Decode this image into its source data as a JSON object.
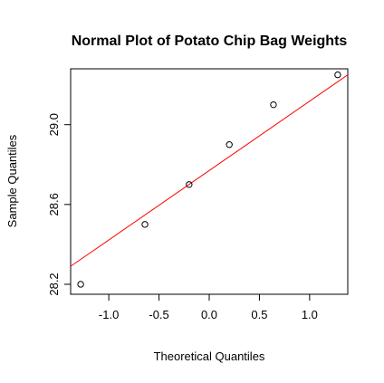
{
  "chart_data": {
    "type": "scatter",
    "title": "Normal Plot of Potato Chip Bag Weights",
    "xlabel": "Theoretical Quantiles",
    "ylabel": "Sample Quantiles",
    "xlim": [
      -1.38,
      1.38
    ],
    "ylim": [
      28.15,
      29.28
    ],
    "x_ticks": [
      -1.0,
      -0.5,
      0.0,
      0.5,
      1.0
    ],
    "x_tick_labels": [
      "-1.0",
      "-0.5",
      "0.0",
      "0.5",
      "1.0"
    ],
    "y_ticks": [
      28.2,
      28.6,
      29.0
    ],
    "y_tick_labels": [
      "28.2",
      "28.6",
      "29.0"
    ],
    "grid": false,
    "points": [
      {
        "x": -1.28,
        "y": 28.2
      },
      {
        "x": -0.64,
        "y": 28.5
      },
      {
        "x": -0.2,
        "y": 28.7
      },
      {
        "x": 0.2,
        "y": 28.9
      },
      {
        "x": 0.64,
        "y": 29.1
      },
      {
        "x": 1.28,
        "y": 29.25
      }
    ],
    "reference_line": {
      "x": [
        -1.38,
        1.38
      ],
      "y": [
        28.29,
        29.25
      ],
      "color": "#ff0000"
    },
    "point_color": "#000000"
  }
}
